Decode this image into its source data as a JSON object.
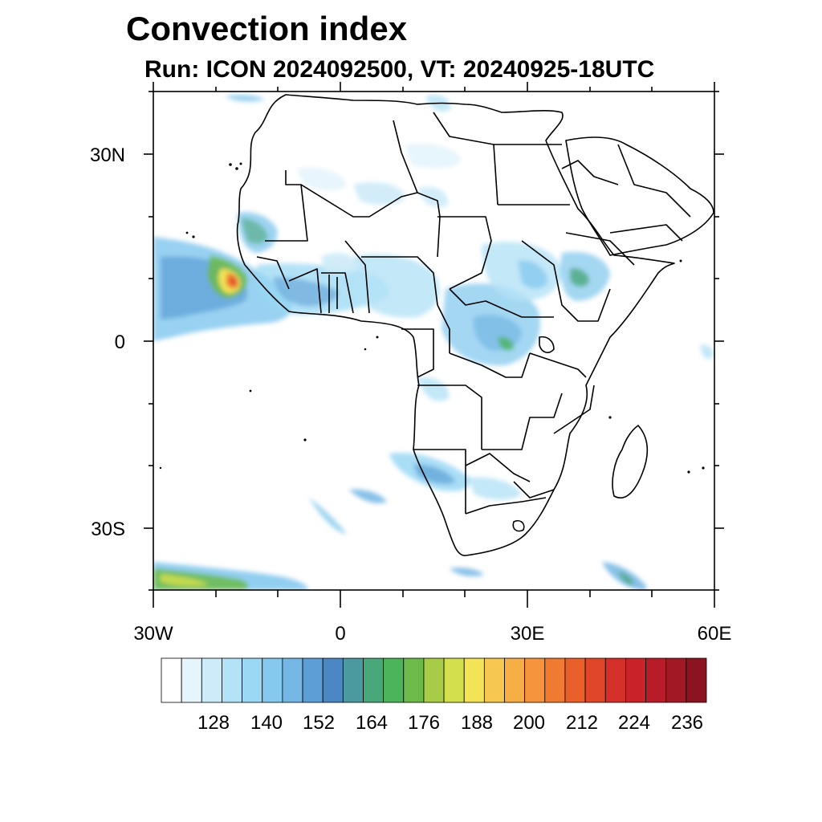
{
  "title": "Convection index",
  "subtitle": "Run: ICON 2024092500,  VT: 20240925-18UTC",
  "map": {
    "lon_range": [
      -30,
      60
    ],
    "lat_range": [
      -40,
      40
    ],
    "lat_labels": [
      "30N",
      "0",
      "30S"
    ],
    "lon_labels": [
      "30W",
      "0",
      "30E",
      "60E"
    ]
  },
  "colorbar": {
    "labels": [
      "128",
      "140",
      "152",
      "164",
      "176",
      "188",
      "200",
      "212",
      "224",
      "236"
    ],
    "colors": [
      "#ffffff",
      "#e6f4fc",
      "#cdebf8",
      "#b4e2f6",
      "#9ad8f4",
      "#86c9ee",
      "#74b6e4",
      "#5d9ed6",
      "#4b88c3",
      "#4a9aa0",
      "#49a87a",
      "#4cb45a",
      "#6cbb4a",
      "#a8cc48",
      "#d4df4e",
      "#f2e456",
      "#f7c84f",
      "#f6ae46",
      "#f5943c",
      "#f07a32",
      "#e9602b",
      "#df4728",
      "#d52f29",
      "#c92329",
      "#b81c28",
      "#a31825",
      "#8b1420"
    ],
    "label_color": "#000000"
  }
}
